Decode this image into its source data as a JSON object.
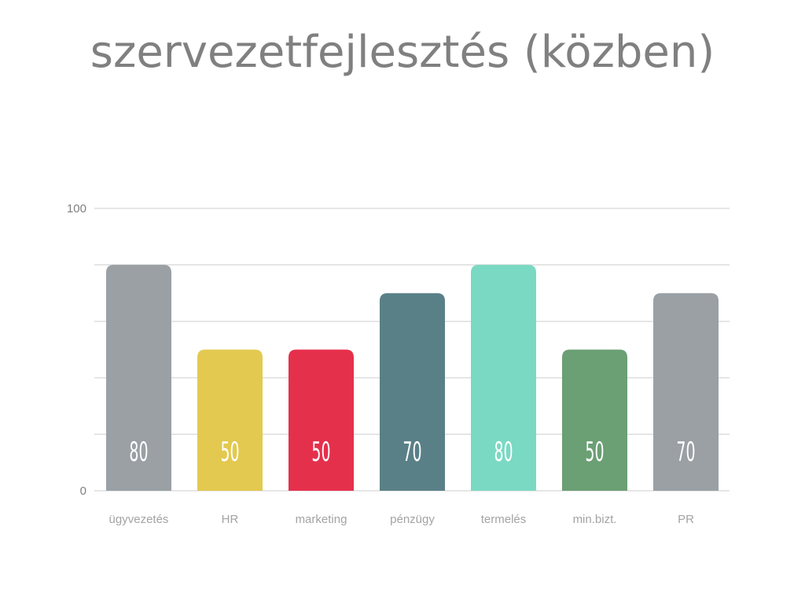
{
  "chart_data": {
    "type": "bar",
    "title": "szervezetfejlesztés (közben)",
    "categories": [
      "ügyvezetés",
      "HR",
      "marketing",
      "pénzügy",
      "termelés",
      "min.bizt.",
      "PR"
    ],
    "values": [
      80,
      50,
      50,
      70,
      80,
      50,
      70
    ],
    "colors": [
      "#9aa0a4",
      "#e3c94f",
      "#e5304c",
      "#5a8087",
      "#7ad9c3",
      "#6b9f74",
      "#9aa0a4"
    ],
    "ylim": [
      0,
      100
    ],
    "yticks": [
      0,
      20,
      40,
      60,
      80,
      100
    ],
    "ytick_labels": [
      "0",
      "",
      "",
      "",
      "",
      "100"
    ],
    "xlabel": "",
    "ylabel": "",
    "grid": true,
    "legend": "none",
    "data_labels": true
  }
}
